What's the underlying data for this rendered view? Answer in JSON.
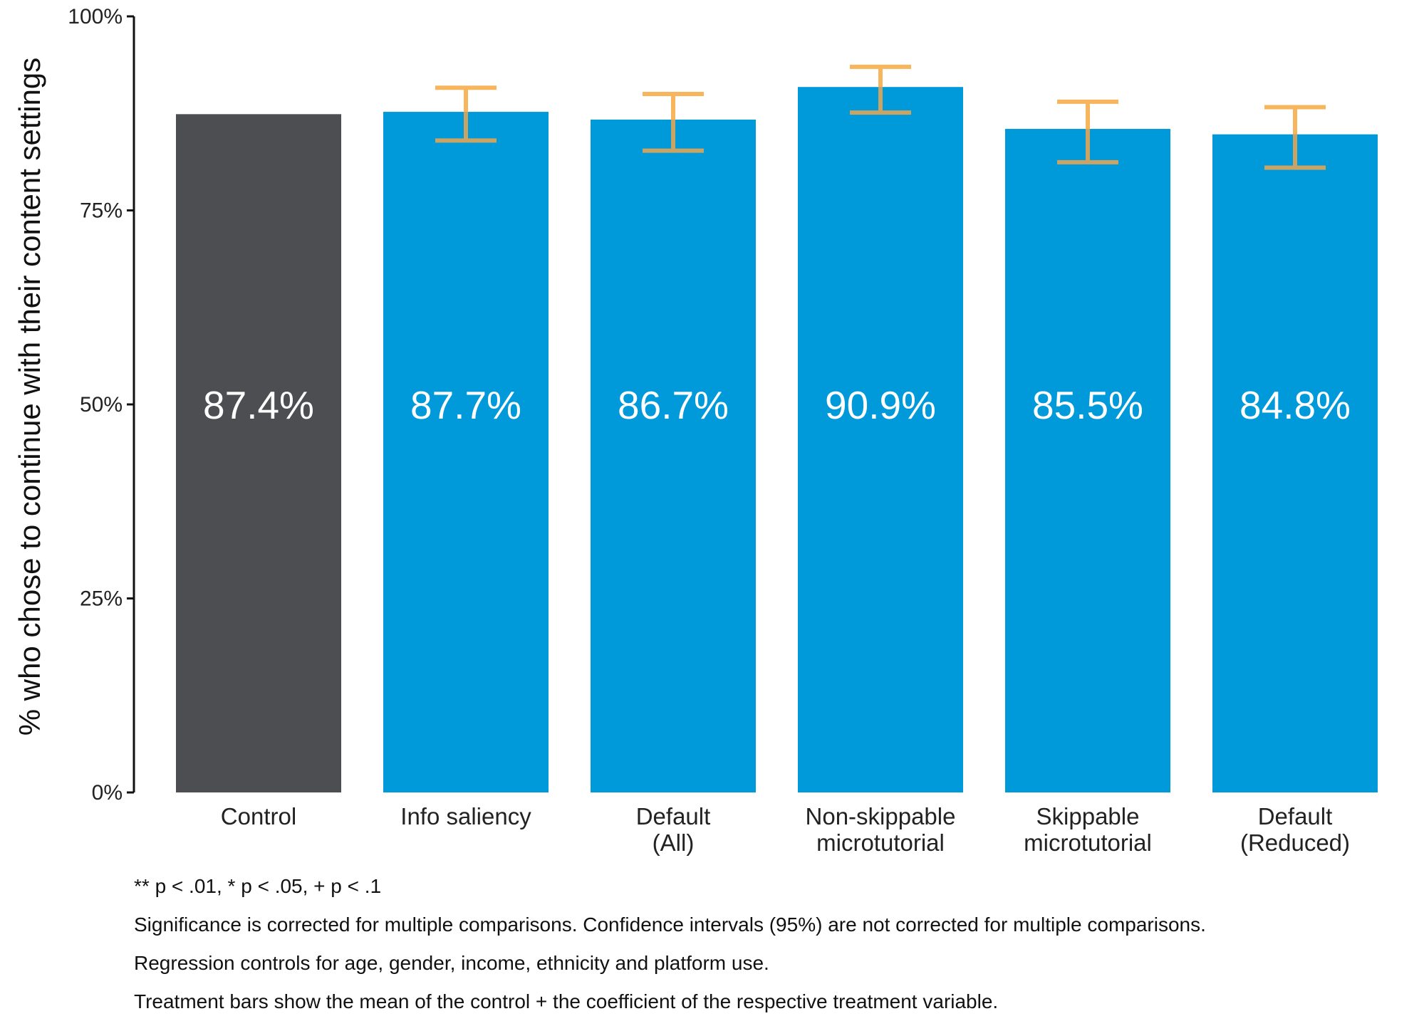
{
  "chart_data": {
    "type": "bar",
    "categories": [
      [
        "Control"
      ],
      [
        "Info saliency"
      ],
      [
        "Default",
        "(All)"
      ],
      [
        "Non-skippable",
        "microtutorial"
      ],
      [
        "Skippable",
        "microtutorial"
      ],
      [
        "Default",
        "(Reduced)"
      ]
    ],
    "values": [
      87.4,
      87.7,
      86.7,
      90.9,
      85.5,
      84.8
    ],
    "value_labels": [
      "87.4%",
      "87.7%",
      "86.7%",
      "90.9%",
      "85.5%",
      "84.8%"
    ],
    "error_bars": [
      null,
      {
        "low": 84.0,
        "high": 90.8
      },
      {
        "low": 82.7,
        "high": 90.0
      },
      {
        "low": 87.6,
        "high": 93.5
      },
      {
        "low": 81.2,
        "high": 89.0
      },
      {
        "low": 80.5,
        "high": 88.3
      }
    ],
    "ylabel": "% who chose to continue with their content settings",
    "xlabel": "",
    "ylim": [
      0,
      100
    ],
    "yticks": [
      0,
      25,
      50,
      75,
      100
    ],
    "ytick_labels": [
      "0%",
      "25%",
      "50%",
      "75%",
      "100%"
    ],
    "grid": false,
    "colors": {
      "control": "#4d4e52",
      "treatment": "#0099da",
      "error_bar": "#f7b55e",
      "error_bar_overlap": "#c9a465"
    }
  },
  "notes": [
    "** p < .01, * p < .05, + p < .1",
    "Significance is corrected for multiple comparisons. Confidence intervals (95%) are not corrected for multiple comparisons.",
    "Regression controls for age, gender, income, ethnicity and platform use.",
    "Treatment bars show the mean of the control + the coefficient of the respective treatment variable."
  ]
}
